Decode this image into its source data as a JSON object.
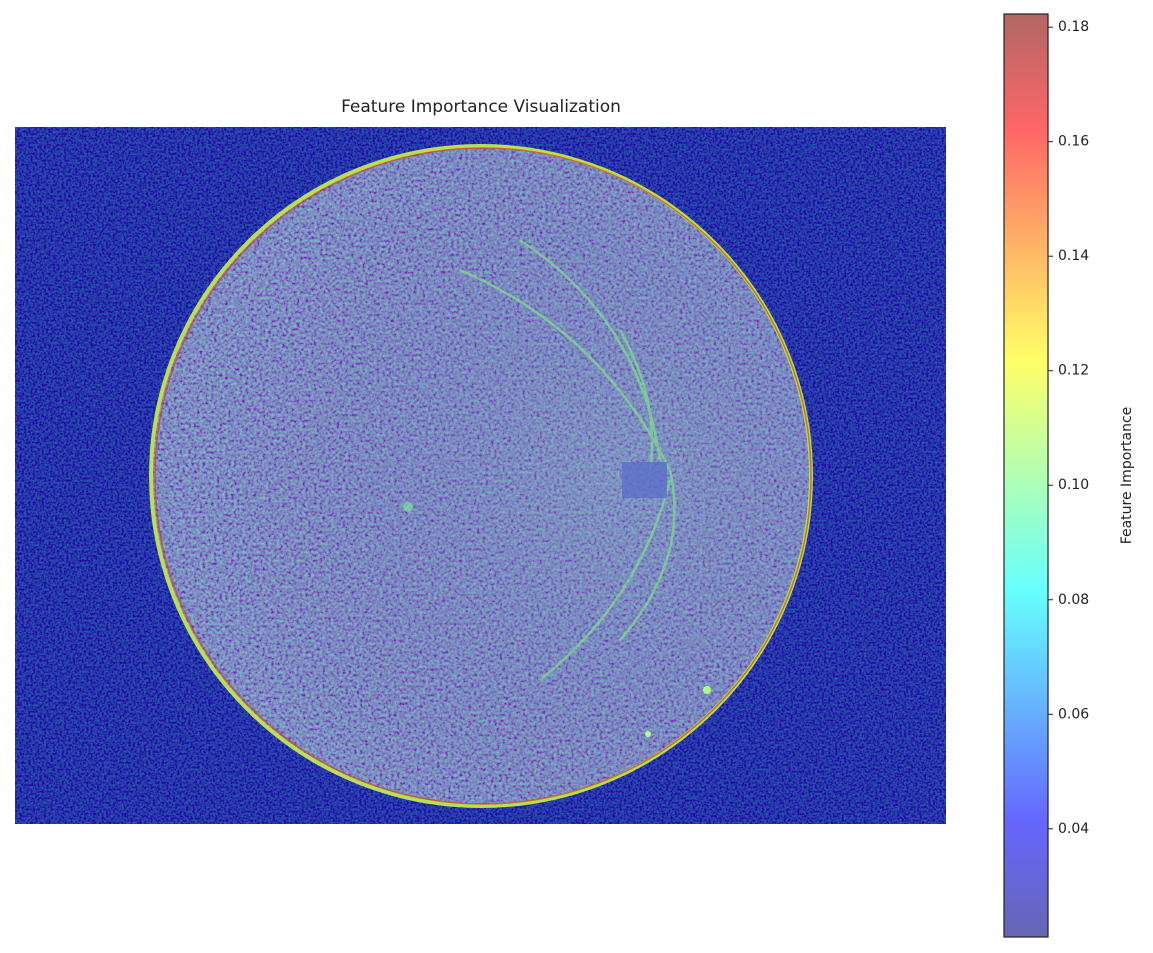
{
  "chart_data": {
    "type": "heatmap",
    "title": "Feature Importance Visualization",
    "colormap": "jet",
    "alpha": 0.6,
    "colorbar": {
      "label": "Feature Importance",
      "lim": [
        0.0211,
        0.1823
      ],
      "ticks": [
        0.04,
        0.06,
        0.08,
        {
          "value": 0.1,
          "label": "0.10"
        },
        0.12,
        0.14,
        0.16,
        0.18
      ]
    }
  }
}
